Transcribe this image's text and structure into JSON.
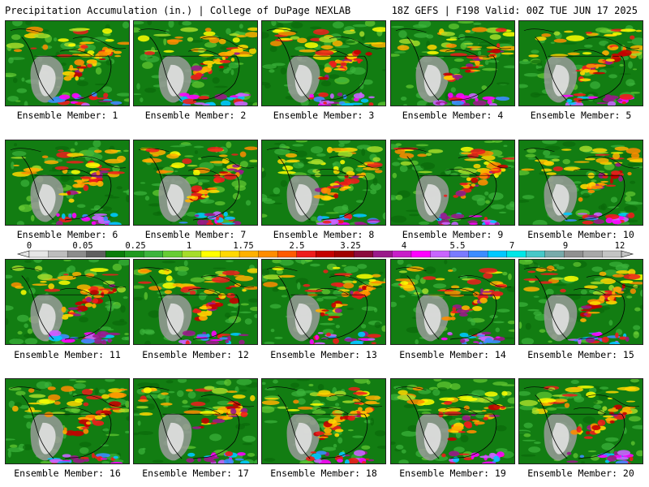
{
  "header": {
    "title": "Precipitation Accumulation (in.) | College of DuPage NEXLAB",
    "run_info": "18Z GEFS | F198 Valid: 00Z TUE JUN 17 2025"
  },
  "colorbar": {
    "labels": [
      "0",
      "0.05",
      "0.25",
      "1",
      "1.75",
      "2.5",
      "3.25",
      "4",
      "5.5",
      "7",
      "9",
      "12"
    ],
    "colors": [
      "#e6e6e6",
      "#bdbdbd",
      "#8c8c8c",
      "#5f5f5f",
      "#0a7d0a",
      "#1f9a1f",
      "#3cb43c",
      "#66cc33",
      "#a5dc2a",
      "#ffff00",
      "#ffd700",
      "#ffb000",
      "#ff8c00",
      "#ff5a00",
      "#ee1c1c",
      "#c40000",
      "#a00000",
      "#8b0a3c",
      "#9a1a8a",
      "#c81ec8",
      "#ff00ff",
      "#c864ff",
      "#7a7aff",
      "#3c8cff",
      "#00c8ff",
      "#00e6e6",
      "#46c8c8",
      "#78aaaa",
      "#909090",
      "#a8a8a8",
      "#c4c4c4"
    ]
  },
  "members": [
    {
      "label": "Ensemble Member: 1"
    },
    {
      "label": "Ensemble Member: 2"
    },
    {
      "label": "Ensemble Member: 3"
    },
    {
      "label": "Ensemble Member: 4"
    },
    {
      "label": "Ensemble Member: 5"
    },
    {
      "label": "Ensemble Member: 6"
    },
    {
      "label": "Ensemble Member: 7"
    },
    {
      "label": "Ensemble Member: 8"
    },
    {
      "label": "Ensemble Member: 9"
    },
    {
      "label": "Ensemble Member: 10"
    },
    {
      "label": "Ensemble Member: 11"
    },
    {
      "label": "Ensemble Member: 12"
    },
    {
      "label": "Ensemble Member: 13"
    },
    {
      "label": "Ensemble Member: 14"
    },
    {
      "label": "Ensemble Member: 15"
    },
    {
      "label": "Ensemble Member: 16"
    },
    {
      "label": "Ensemble Member: 17"
    },
    {
      "label": "Ensemble Member: 18"
    },
    {
      "label": "Ensemble Member: 19"
    },
    {
      "label": "Ensemble Member: 20"
    }
  ]
}
